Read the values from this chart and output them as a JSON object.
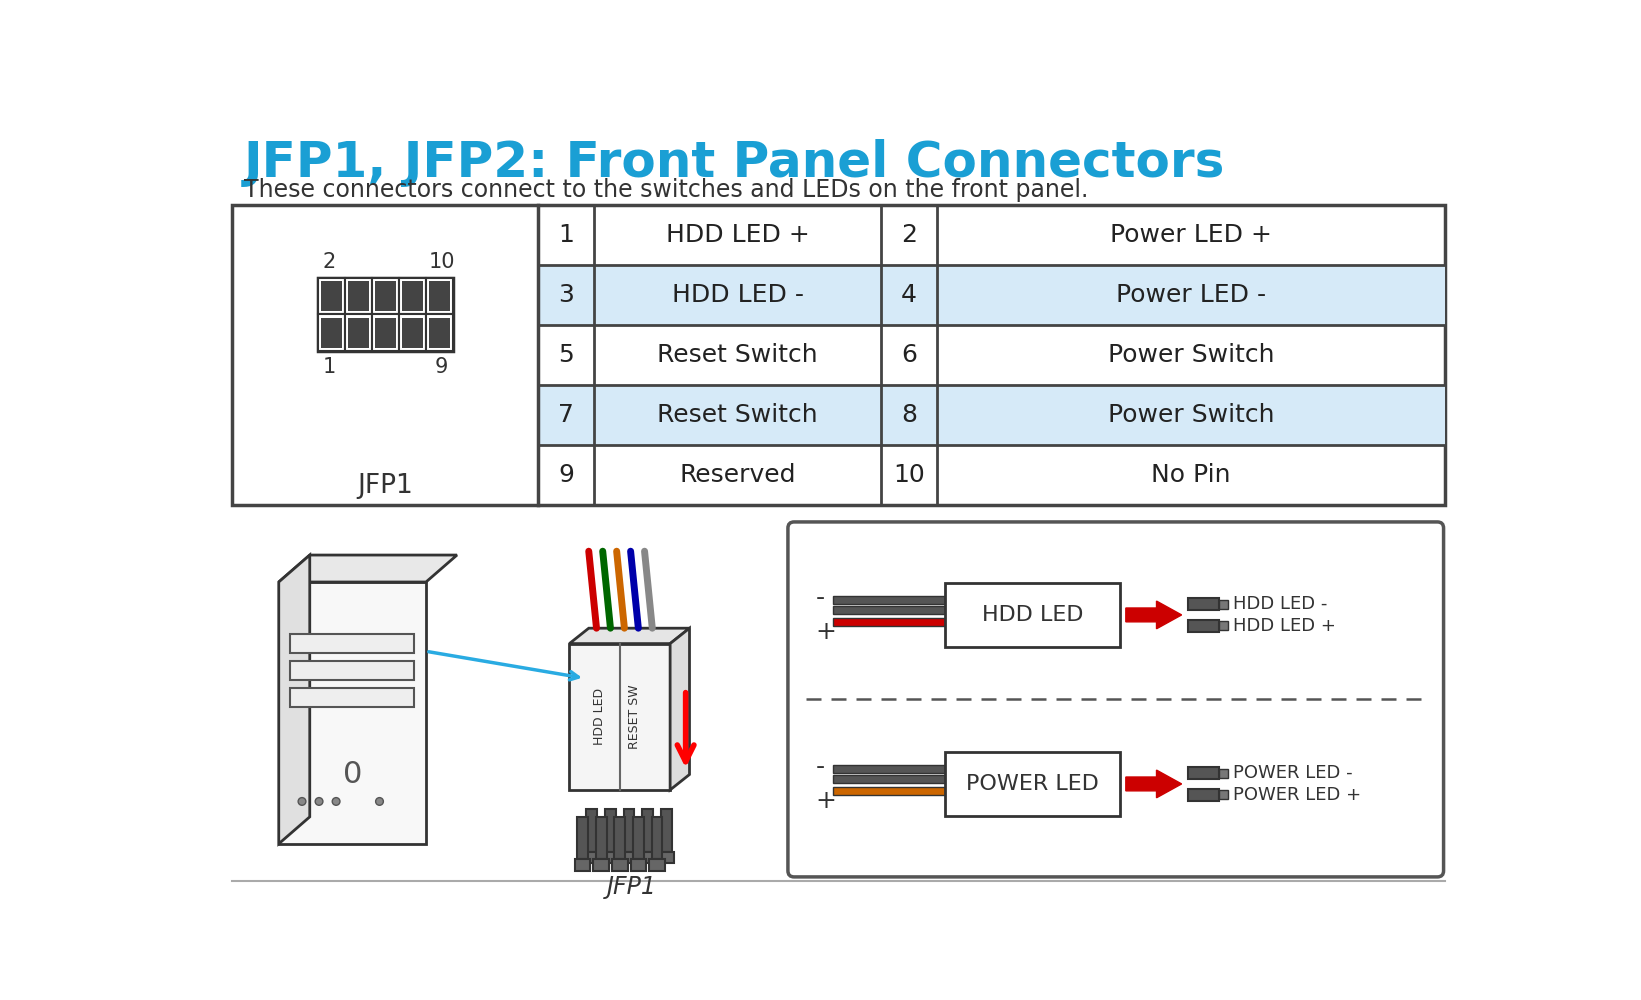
{
  "title": "JFP1, JFP2: Front Panel Connectors",
  "subtitle": "These connectors connect to the switches and LEDs on the front panel.",
  "title_color": "#1a9fd4",
  "subtitle_color": "#333333",
  "bg_color": "#ffffff",
  "table_rows": [
    {
      "pin_l": "1",
      "label_l": "HDD LED +",
      "pin_r": "2",
      "label_r": "Power LED +",
      "shaded": false
    },
    {
      "pin_l": "3",
      "label_l": "HDD LED -",
      "pin_r": "4",
      "label_r": "Power LED -",
      "shaded": true
    },
    {
      "pin_l": "5",
      "label_l": "Reset Switch",
      "pin_r": "6",
      "label_r": "Power Switch",
      "shaded": false
    },
    {
      "pin_l": "7",
      "label_l": "Reset Switch",
      "pin_r": "8",
      "label_r": "Power Switch",
      "shaded": true
    },
    {
      "pin_l": "9",
      "label_l": "Reserved",
      "pin_r": "10",
      "label_r": "No Pin",
      "shaded": false
    }
  ],
  "shade_color": "#d6eaf8",
  "table_border_color": "#444444",
  "connector_label": "JFP1",
  "hdd_led_label": "HDD LED",
  "power_led_label": "POWER LED",
  "hdd_led_minus": "HDD LED -",
  "hdd_led_plus": "HDD LED +",
  "power_led_minus": "POWER LED -",
  "power_led_plus": "POWER LED +",
  "wire_colors_top": [
    "#cc0000",
    "#006600",
    "#cc6600",
    "#000088",
    "#888888"
  ],
  "hdd_wire_color": "#cc0000",
  "power_wire_color": "#cc6600"
}
